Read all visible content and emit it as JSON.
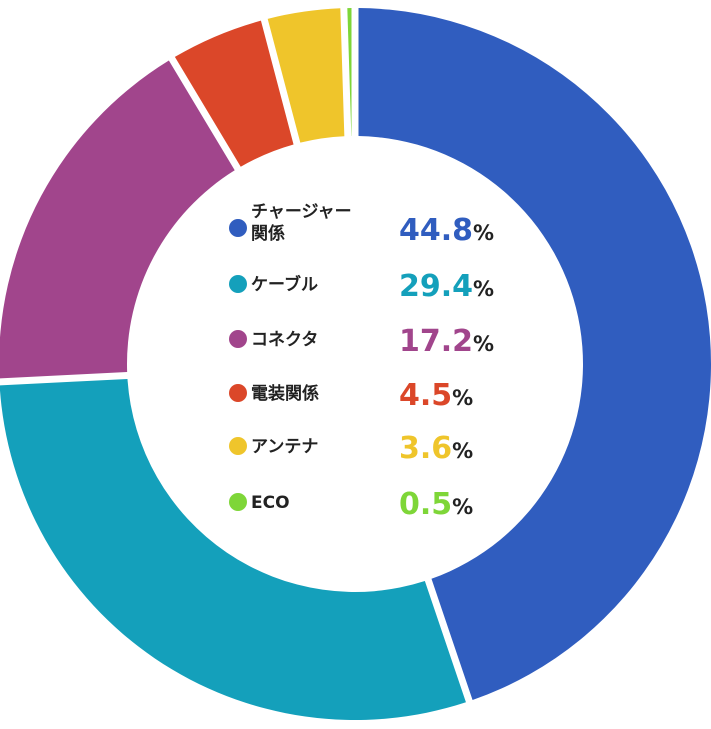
{
  "chart_data": {
    "type": "pie",
    "unit": "%",
    "categories": [
      "チャージャー関係",
      "ケーブル",
      "コネクタ",
      "電装関係",
      "アンテナ",
      "ECO"
    ],
    "label_lines": [
      [
        "チャージャー",
        "関係"
      ],
      [
        "ケーブル"
      ],
      [
        "コネクタ"
      ],
      [
        "電装関係"
      ],
      [
        "アンテナ"
      ],
      [
        "ECO"
      ]
    ],
    "value_text": [
      "44.8",
      "29.4",
      "17.2",
      "4.5",
      "3.6",
      "0.5"
    ],
    "values": [
      44.8,
      29.4,
      17.2,
      4.5,
      3.6,
      0.5
    ],
    "colors": [
      "#305dbf",
      "#14a0bb",
      "#a1458c",
      "#db4729",
      "#efc52b",
      "#7ed638"
    ],
    "legend_position": "center",
    "style": "donut"
  }
}
